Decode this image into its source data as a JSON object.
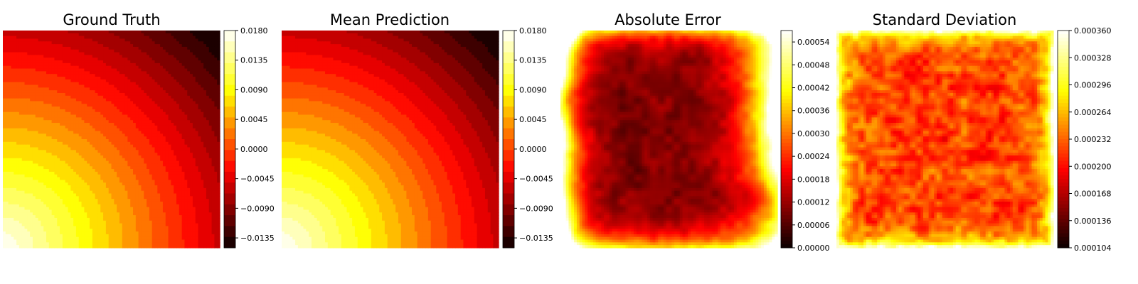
{
  "colormap": "hot",
  "colormap_stops": [
    "#0b0000",
    "#ff0000",
    "#ffff00",
    "#ffffff"
  ],
  "chart_data": [
    {
      "type": "heatmap",
      "title": "Ground Truth",
      "style": "filled-contour",
      "field": "smooth-radial",
      "levels": 20,
      "colorbar": {
        "min": -0.015,
        "max": 0.018,
        "ticks": [
          "0.0180",
          "0.0135",
          "0.0090",
          "0.0045",
          "0.0000",
          "−0.0045",
          "−0.0090",
          "−0.0135"
        ],
        "tick_values": [
          0.018,
          0.0135,
          0.009,
          0.0045,
          0.0,
          -0.0045,
          -0.009,
          -0.0135
        ]
      }
    },
    {
      "type": "heatmap",
      "title": "Mean Prediction",
      "style": "filled-contour",
      "field": "smooth-radial",
      "levels": 20,
      "colorbar": {
        "min": -0.015,
        "max": 0.018,
        "ticks": [
          "0.0180",
          "0.0135",
          "0.0090",
          "0.0045",
          "0.0000",
          "−0.0045",
          "−0.0090",
          "−0.0135"
        ],
        "tick_values": [
          0.018,
          0.0135,
          0.009,
          0.0045,
          0.0,
          -0.0045,
          -0.009,
          -0.0135
        ]
      }
    },
    {
      "type": "heatmap",
      "title": "Absolute Error",
      "style": "noisy-field",
      "field": "edge-bright-error",
      "colorbar": {
        "min": 0.0,
        "max": 0.00057,
        "ticks": [
          "0.00054",
          "0.00048",
          "0.00042",
          "0.00036",
          "0.00030",
          "0.00024",
          "0.00018",
          "0.00012",
          "0.00006",
          "0.00000"
        ],
        "tick_values": [
          0.00054,
          0.00048,
          0.00042,
          0.00036,
          0.0003,
          0.00024,
          0.00018,
          0.00012,
          6e-05,
          0.0
        ]
      }
    },
    {
      "type": "heatmap",
      "title": "Standard Deviation",
      "style": "noisy-field",
      "field": "border-bright-noise",
      "colorbar": {
        "min": 0.000104,
        "max": 0.00036,
        "ticks": [
          "0.000360",
          "0.000328",
          "0.000296",
          "0.000264",
          "0.000232",
          "0.000200",
          "0.000168",
          "0.000136",
          "0.000104"
        ],
        "tick_values": [
          0.00036,
          0.000328,
          0.000296,
          0.000264,
          0.000232,
          0.0002,
          0.000168,
          0.000136,
          0.000104
        ]
      }
    }
  ]
}
